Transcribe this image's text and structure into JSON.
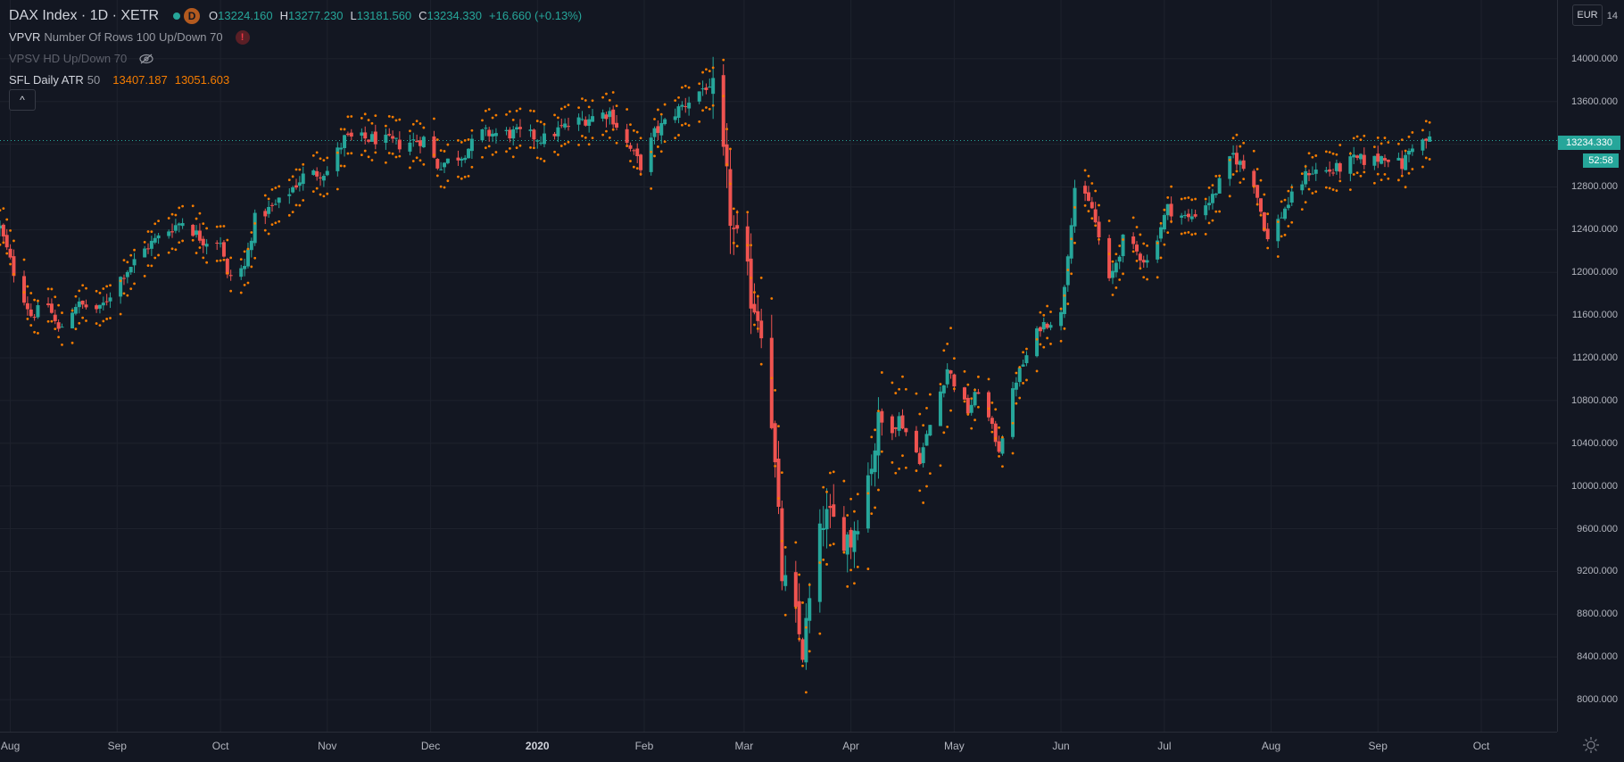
{
  "header": {
    "symbol": "DAX Index",
    "interval": "1D",
    "exchange": "XETR",
    "badge": "D",
    "ohlc": {
      "o_label": "O",
      "o": "13224.160",
      "h_label": "H",
      "h": "13277.230",
      "l_label": "L",
      "l": "13181.560",
      "c_label": "C",
      "c": "13234.330",
      "change": "+16.660 (+0.13%)"
    }
  },
  "indicators": {
    "vpvr": {
      "name": "VPVR",
      "args": "Number Of Rows 100 Up/Down 70",
      "warn": "!"
    },
    "vpsv": {
      "name": "VPSV",
      "args": "HD Up/Down 70"
    },
    "atr": {
      "name": "SFL Daily ATR",
      "args": "50",
      "upper": "13407.187",
      "lower": "13051.603"
    }
  },
  "collapse_label": "^",
  "currency": "EUR",
  "last_price": "13234.330",
  "countdown": "52:58",
  "colors": {
    "up": "#26a69a",
    "down": "#ef5350",
    "atr": "#f57c00",
    "background": "#131722",
    "grid": "#1e222d"
  },
  "chart_data": {
    "type": "candlestick",
    "title": "DAX Index · 1D · XETR",
    "price_ticks": [
      "14000.000",
      "13600.000",
      "13200.000",
      "12800.000",
      "12400.000",
      "12000.000",
      "11600.000",
      "11200.000",
      "10800.000",
      "10400.000",
      "10000.000",
      "9600.000",
      "9200.000",
      "8800.000",
      "8400.000",
      "8000.000"
    ],
    "price_top_partial": "14",
    "ylim": [
      7700,
      14550
    ],
    "time_ticks": [
      {
        "label": "Aug",
        "date": "2019-08-01"
      },
      {
        "label": "Sep",
        "date": "2019-09-01"
      },
      {
        "label": "Oct",
        "date": "2019-10-01"
      },
      {
        "label": "Nov",
        "date": "2019-11-01"
      },
      {
        "label": "Dec",
        "date": "2019-12-01"
      },
      {
        "label": "2020",
        "date": "2020-01-01",
        "bold": true
      },
      {
        "label": "Feb",
        "date": "2020-02-01"
      },
      {
        "label": "Mar",
        "date": "2020-03-01"
      },
      {
        "label": "Apr",
        "date": "2020-04-01"
      },
      {
        "label": "May",
        "date": "2020-05-01"
      },
      {
        "label": "Jun",
        "date": "2020-06-01"
      },
      {
        "label": "Jul",
        "date": "2020-07-01"
      },
      {
        "label": "Aug",
        "date": "2020-08-01"
      },
      {
        "label": "Sep",
        "date": "2020-09-01"
      },
      {
        "label": "Oct",
        "date": "2020-10-01"
      }
    ],
    "xlim": [
      "2019-07-29",
      "2020-10-23"
    ],
    "last_price_value": 13234.33,
    "close_anchors": [
      [
        "2019-07-29",
        12420
      ],
      [
        "2019-08-02",
        12000
      ],
      [
        "2019-08-07",
        11600
      ],
      [
        "2019-08-12",
        11700
      ],
      [
        "2019-08-15",
        11450
      ],
      [
        "2019-08-20",
        11700
      ],
      [
        "2019-08-27",
        11650
      ],
      [
        "2019-09-02",
        11950
      ],
      [
        "2019-09-10",
        12250
      ],
      [
        "2019-09-16",
        12400
      ],
      [
        "2019-09-20",
        12480
      ],
      [
        "2019-09-26",
        12300
      ],
      [
        "2019-10-01",
        12300
      ],
      [
        "2019-10-03",
        11950
      ],
      [
        "2019-10-08",
        12050
      ],
      [
        "2019-10-11",
        12500
      ],
      [
        "2019-10-18",
        12650
      ],
      [
        "2019-10-25",
        12900
      ],
      [
        "2019-11-01",
        12950
      ],
      [
        "2019-11-06",
        13250
      ],
      [
        "2019-11-15",
        13250
      ],
      [
        "2019-11-22",
        13200
      ],
      [
        "2019-11-29",
        13250
      ],
      [
        "2019-12-03",
        13000
      ],
      [
        "2019-12-10",
        13100
      ],
      [
        "2019-12-16",
        13300
      ],
      [
        "2019-12-27",
        13300
      ],
      [
        "2020-01-03",
        13250
      ],
      [
        "2020-01-08",
        13350
      ],
      [
        "2020-01-16",
        13450
      ],
      [
        "2020-01-22",
        13500
      ],
      [
        "2020-01-27",
        13200
      ],
      [
        "2020-01-31",
        13000
      ],
      [
        "2020-02-04",
        13300
      ],
      [
        "2020-02-10",
        13500
      ],
      [
        "2020-02-19",
        13750
      ],
      [
        "2020-02-21",
        13600
      ],
      [
        "2020-02-24",
        13000
      ],
      [
        "2020-02-27",
        12350
      ],
      [
        "2020-03-02",
        11900
      ],
      [
        "2020-03-06",
        11550
      ],
      [
        "2020-03-09",
        10650
      ],
      [
        "2020-03-12",
        9160
      ],
      [
        "2020-03-16",
        8750
      ],
      [
        "2020-03-18",
        8450
      ],
      [
        "2020-03-20",
        8900
      ],
      [
        "2020-03-24",
        9700
      ],
      [
        "2020-03-27",
        9650
      ],
      [
        "2020-04-01",
        9500
      ],
      [
        "2020-04-06",
        10100
      ],
      [
        "2020-04-09",
        10550
      ],
      [
        "2020-04-14",
        10700
      ],
      [
        "2020-04-21",
        10250
      ],
      [
        "2020-04-29",
        11100
      ],
      [
        "2020-05-05",
        10700
      ],
      [
        "2020-05-08",
        10900
      ],
      [
        "2020-05-14",
        10350
      ],
      [
        "2020-05-19",
        11000
      ],
      [
        "2020-05-26",
        11500
      ],
      [
        "2020-06-01",
        11600
      ],
      [
        "2020-06-05",
        12800
      ],
      [
        "2020-06-10",
        12600
      ],
      [
        "2020-06-15",
        11900
      ],
      [
        "2020-06-19",
        12300
      ],
      [
        "2020-06-26",
        12100
      ],
      [
        "2020-07-02",
        12600
      ],
      [
        "2020-07-08",
        12500
      ],
      [
        "2020-07-15",
        12700
      ],
      [
        "2020-07-21",
        13100
      ],
      [
        "2020-07-27",
        12850
      ],
      [
        "2020-07-31",
        12300
      ],
      [
        "2020-08-05",
        12600
      ],
      [
        "2020-08-12",
        12950
      ],
      [
        "2020-08-19",
        12950
      ],
      [
        "2020-08-25",
        13050
      ],
      [
        "2020-08-31",
        13050
      ],
      [
        "2020-09-03",
        13100
      ],
      [
        "2020-09-08",
        13000
      ],
      [
        "2020-09-11",
        13200
      ],
      [
        "2020-09-16",
        13234
      ]
    ]
  }
}
